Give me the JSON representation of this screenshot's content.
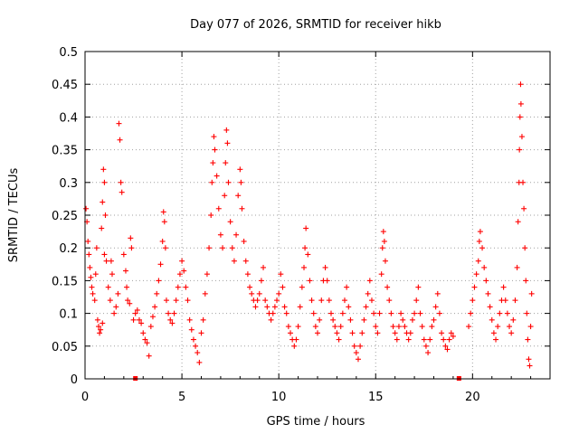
{
  "chart_data": {
    "type": "scatter",
    "title": "Day 077 of 2026, SRMTID for receiver hikb",
    "xlabel": "GPS time / hours",
    "ylabel": "SRMTID / TECUs",
    "xlim": [
      0,
      24
    ],
    "ylim": [
      0,
      0.5
    ],
    "xticks": [
      0,
      5,
      10,
      15,
      20
    ],
    "xtick_labels": [
      "0",
      "5",
      "10",
      "15",
      "20"
    ],
    "yticks": [
      0,
      0.05,
      0.1,
      0.15,
      0.2,
      0.25,
      0.3,
      0.35,
      0.4,
      0.45,
      0.5
    ],
    "ytick_labels": [
      "0",
      "0.05",
      "0.1",
      "0.15",
      "0.2",
      "0.25",
      "0.3",
      "0.35",
      "0.4",
      "0.45",
      "0.5"
    ],
    "grid": true,
    "marker": "+",
    "color": "#ff0000",
    "series": [
      {
        "name": "SRMTID",
        "points": [
          [
            0.05,
            0.26
          ],
          [
            0.1,
            0.24
          ],
          [
            0.15,
            0.21
          ],
          [
            0.2,
            0.19
          ],
          [
            0.25,
            0.17
          ],
          [
            0.3,
            0.155
          ],
          [
            0.35,
            0.14
          ],
          [
            0.4,
            0.13
          ],
          [
            0.5,
            0.12
          ],
          [
            0.55,
            0.16
          ],
          [
            0.6,
            0.2
          ],
          [
            0.65,
            0.09
          ],
          [
            0.7,
            0.08
          ],
          [
            0.75,
            0.07
          ],
          [
            0.8,
            0.075
          ],
          [
            0.9,
            0.085
          ],
          [
            1.0,
            0.19
          ],
          [
            0.85,
            0.23
          ],
          [
            0.9,
            0.27
          ],
          [
            0.95,
            0.32
          ],
          [
            1.0,
            0.3
          ],
          [
            1.05,
            0.25
          ],
          [
            1.1,
            0.18
          ],
          [
            1.2,
            0.14
          ],
          [
            1.3,
            0.12
          ],
          [
            1.35,
            0.18
          ],
          [
            1.4,
            0.16
          ],
          [
            1.5,
            0.1
          ],
          [
            1.6,
            0.11
          ],
          [
            1.7,
            0.13
          ],
          [
            1.75,
            0.39
          ],
          [
            1.8,
            0.365
          ],
          [
            1.85,
            0.3
          ],
          [
            1.9,
            0.285
          ],
          [
            2.0,
            0.19
          ],
          [
            2.1,
            0.165
          ],
          [
            2.15,
            0.14
          ],
          [
            2.2,
            0.12
          ],
          [
            2.3,
            0.115
          ],
          [
            2.35,
            0.215
          ],
          [
            2.4,
            0.2
          ],
          [
            2.5,
            0.09
          ],
          [
            2.6,
            0.1
          ],
          [
            2.7,
            0.105
          ],
          [
            2.8,
            0.09
          ],
          [
            2.9,
            0.085
          ],
          [
            3.0,
            0.07
          ],
          [
            3.1,
            0.06
          ],
          [
            3.2,
            0.055
          ],
          [
            3.3,
            0.035
          ],
          [
            3.4,
            0.08
          ],
          [
            3.5,
            0.095
          ],
          [
            3.6,
            0.11
          ],
          [
            3.7,
            0.13
          ],
          [
            3.8,
            0.15
          ],
          [
            3.9,
            0.175
          ],
          [
            4.0,
            0.21
          ],
          [
            4.05,
            0.255
          ],
          [
            4.1,
            0.24
          ],
          [
            4.15,
            0.2
          ],
          [
            4.2,
            0.12
          ],
          [
            4.3,
            0.1
          ],
          [
            4.4,
            0.09
          ],
          [
            4.5,
            0.085
          ],
          [
            4.6,
            0.1
          ],
          [
            4.7,
            0.12
          ],
          [
            4.8,
            0.14
          ],
          [
            4.9,
            0.16
          ],
          [
            5.0,
            0.18
          ],
          [
            5.1,
            0.165
          ],
          [
            5.2,
            0.14
          ],
          [
            5.3,
            0.12
          ],
          [
            5.4,
            0.09
          ],
          [
            5.5,
            0.075
          ],
          [
            5.6,
            0.06
          ],
          [
            5.7,
            0.05
          ],
          [
            5.8,
            0.04
          ],
          [
            5.9,
            0.025
          ],
          [
            6.0,
            0.07
          ],
          [
            6.1,
            0.09
          ],
          [
            6.2,
            0.13
          ],
          [
            6.3,
            0.16
          ],
          [
            6.4,
            0.2
          ],
          [
            6.5,
            0.25
          ],
          [
            6.55,
            0.3
          ],
          [
            6.6,
            0.33
          ],
          [
            6.65,
            0.37
          ],
          [
            6.7,
            0.35
          ],
          [
            6.8,
            0.31
          ],
          [
            6.9,
            0.26
          ],
          [
            7.0,
            0.22
          ],
          [
            7.1,
            0.2
          ],
          [
            7.2,
            0.28
          ],
          [
            7.25,
            0.33
          ],
          [
            7.3,
            0.38
          ],
          [
            7.35,
            0.36
          ],
          [
            7.4,
            0.3
          ],
          [
            7.5,
            0.24
          ],
          [
            7.6,
            0.2
          ],
          [
            7.7,
            0.18
          ],
          [
            7.8,
            0.22
          ],
          [
            7.9,
            0.28
          ],
          [
            8.0,
            0.32
          ],
          [
            8.05,
            0.3
          ],
          [
            8.1,
            0.26
          ],
          [
            8.2,
            0.21
          ],
          [
            8.3,
            0.18
          ],
          [
            8.4,
            0.16
          ],
          [
            8.5,
            0.14
          ],
          [
            8.6,
            0.13
          ],
          [
            8.7,
            0.12
          ],
          [
            8.8,
            0.11
          ],
          [
            8.9,
            0.12
          ],
          [
            9.0,
            0.13
          ],
          [
            9.1,
            0.15
          ],
          [
            9.2,
            0.17
          ],
          [
            9.3,
            0.12
          ],
          [
            9.4,
            0.11
          ],
          [
            9.5,
            0.1
          ],
          [
            9.6,
            0.09
          ],
          [
            9.7,
            0.1
          ],
          [
            9.8,
            0.11
          ],
          [
            9.9,
            0.12
          ],
          [
            10.0,
            0.13
          ],
          [
            10.1,
            0.16
          ],
          [
            10.2,
            0.14
          ],
          [
            10.3,
            0.11
          ],
          [
            10.4,
            0.1
          ],
          [
            10.5,
            0.08
          ],
          [
            10.6,
            0.07
          ],
          [
            10.7,
            0.06
          ],
          [
            10.8,
            0.05
          ],
          [
            10.9,
            0.06
          ],
          [
            11.0,
            0.08
          ],
          [
            11.1,
            0.11
          ],
          [
            11.2,
            0.14
          ],
          [
            11.3,
            0.17
          ],
          [
            11.35,
            0.2
          ],
          [
            11.4,
            0.23
          ],
          [
            11.5,
            0.19
          ],
          [
            11.6,
            0.15
          ],
          [
            11.7,
            0.12
          ],
          [
            11.8,
            0.1
          ],
          [
            11.9,
            0.08
          ],
          [
            12.0,
            0.07
          ],
          [
            12.1,
            0.09
          ],
          [
            12.2,
            0.12
          ],
          [
            12.3,
            0.15
          ],
          [
            12.4,
            0.17
          ],
          [
            12.5,
            0.15
          ],
          [
            12.6,
            0.12
          ],
          [
            12.7,
            0.1
          ],
          [
            12.8,
            0.09
          ],
          [
            12.9,
            0.08
          ],
          [
            13.0,
            0.07
          ],
          [
            13.1,
            0.06
          ],
          [
            13.2,
            0.08
          ],
          [
            13.3,
            0.1
          ],
          [
            13.4,
            0.12
          ],
          [
            13.5,
            0.14
          ],
          [
            13.6,
            0.11
          ],
          [
            13.7,
            0.09
          ],
          [
            13.8,
            0.07
          ],
          [
            13.9,
            0.05
          ],
          [
            14.0,
            0.04
          ],
          [
            14.1,
            0.03
          ],
          [
            14.2,
            0.05
          ],
          [
            14.3,
            0.07
          ],
          [
            14.4,
            0.09
          ],
          [
            14.5,
            0.11
          ],
          [
            14.6,
            0.13
          ],
          [
            14.7,
            0.15
          ],
          [
            14.8,
            0.12
          ],
          [
            14.9,
            0.1
          ],
          [
            15.0,
            0.08
          ],
          [
            15.1,
            0.07
          ],
          [
            15.2,
            0.1
          ],
          [
            15.3,
            0.16
          ],
          [
            15.35,
            0.2
          ],
          [
            15.4,
            0.225
          ],
          [
            15.45,
            0.21
          ],
          [
            15.5,
            0.18
          ],
          [
            15.6,
            0.14
          ],
          [
            15.7,
            0.12
          ],
          [
            15.8,
            0.1
          ],
          [
            15.9,
            0.08
          ],
          [
            16.0,
            0.07
          ],
          [
            16.1,
            0.06
          ],
          [
            16.2,
            0.08
          ],
          [
            16.3,
            0.1
          ],
          [
            16.4,
            0.09
          ],
          [
            16.5,
            0.08
          ],
          [
            16.6,
            0.07
          ],
          [
            16.7,
            0.06
          ],
          [
            16.8,
            0.07
          ],
          [
            16.9,
            0.09
          ],
          [
            17.0,
            0.1
          ],
          [
            17.1,
            0.12
          ],
          [
            17.2,
            0.14
          ],
          [
            17.3,
            0.1
          ],
          [
            17.4,
            0.08
          ],
          [
            17.5,
            0.06
          ],
          [
            17.6,
            0.05
          ],
          [
            17.7,
            0.04
          ],
          [
            17.8,
            0.06
          ],
          [
            17.9,
            0.08
          ],
          [
            18.0,
            0.09
          ],
          [
            18.1,
            0.11
          ],
          [
            18.2,
            0.13
          ],
          [
            18.3,
            0.1
          ],
          [
            18.4,
            0.07
          ],
          [
            18.5,
            0.06
          ],
          [
            18.6,
            0.05
          ],
          [
            18.7,
            0.045
          ],
          [
            18.8,
            0.06
          ],
          [
            18.9,
            0.07
          ],
          [
            19.0,
            0.065
          ],
          [
            19.8,
            0.08
          ],
          [
            19.9,
            0.1
          ],
          [
            20.0,
            0.12
          ],
          [
            20.1,
            0.14
          ],
          [
            20.2,
            0.16
          ],
          [
            20.3,
            0.18
          ],
          [
            20.35,
            0.21
          ],
          [
            20.4,
            0.225
          ],
          [
            20.5,
            0.2
          ],
          [
            20.6,
            0.17
          ],
          [
            20.7,
            0.15
          ],
          [
            20.8,
            0.13
          ],
          [
            20.9,
            0.11
          ],
          [
            21.0,
            0.09
          ],
          [
            21.1,
            0.07
          ],
          [
            21.2,
            0.06
          ],
          [
            21.3,
            0.08
          ],
          [
            21.4,
            0.1
          ],
          [
            21.5,
            0.12
          ],
          [
            21.6,
            0.14
          ],
          [
            21.7,
            0.12
          ],
          [
            21.8,
            0.1
          ],
          [
            21.9,
            0.08
          ],
          [
            22.0,
            0.07
          ],
          [
            22.1,
            0.09
          ],
          [
            22.2,
            0.12
          ],
          [
            22.3,
            0.17
          ],
          [
            22.35,
            0.24
          ],
          [
            22.4,
            0.3
          ],
          [
            22.42,
            0.35
          ],
          [
            22.45,
            0.4
          ],
          [
            22.48,
            0.45
          ],
          [
            22.5,
            0.42
          ],
          [
            22.55,
            0.37
          ],
          [
            22.6,
            0.3
          ],
          [
            22.65,
            0.26
          ],
          [
            22.7,
            0.2
          ],
          [
            22.75,
            0.15
          ],
          [
            22.8,
            0.1
          ],
          [
            22.85,
            0.06
          ],
          [
            22.9,
            0.03
          ],
          [
            22.95,
            0.02
          ],
          [
            23.0,
            0.08
          ],
          [
            23.05,
            0.13
          ]
        ]
      }
    ],
    "gap_markers": [
      2.6,
      19.3
    ]
  }
}
